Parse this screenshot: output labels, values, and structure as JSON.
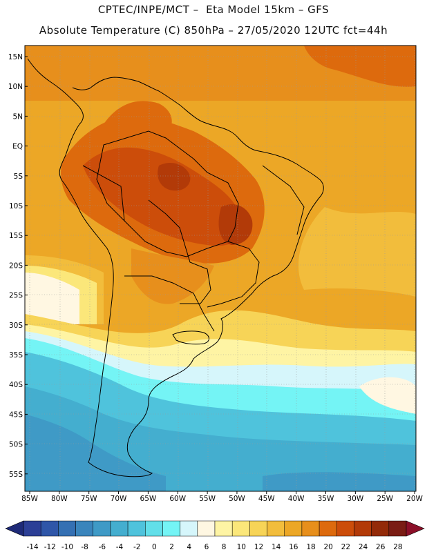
{
  "title": {
    "line1": "CPTEC/INPE/MCT –  Eta Model 15km – GFS",
    "line2": "Absolute Temperature (C) 850hPa – 27/05/2020 12UTC fct=44h"
  },
  "map": {
    "lon_range": [
      -85,
      -20
    ],
    "lat_range": [
      -58,
      17
    ],
    "lat_ticks": [
      "15N",
      "10N",
      "5N",
      "EQ",
      "5S",
      "10S",
      "15S",
      "20S",
      "25S",
      "30S",
      "35S",
      "40S",
      "45S",
      "50S",
      "55S"
    ],
    "lon_ticks": [
      "85W",
      "80W",
      "75W",
      "70W",
      "65W",
      "60W",
      "55W",
      "50W",
      "45W",
      "40W",
      "35W",
      "30W",
      "25W",
      "20W"
    ]
  },
  "colorbar": {
    "labels": [
      "-14",
      "-12",
      "-10",
      "-8",
      "-6",
      "-4",
      "-2",
      "0",
      "2",
      "4",
      "6",
      "8",
      "10",
      "12",
      "14",
      "16",
      "18",
      "20",
      "22",
      "24",
      "26",
      "28"
    ],
    "colors": [
      "#2c3f96",
      "#2f56a8",
      "#3470b3",
      "#3a85bc",
      "#3f9ac6",
      "#44aecf",
      "#4fc3dc",
      "#62dfe9",
      "#74f4f5",
      "#d6f6fb",
      "#fff7e2",
      "#fef4a4",
      "#fbe77a",
      "#f7d457",
      "#f2bd3c",
      "#eca726",
      "#e78f1c",
      "#dd6a0d",
      "#cc4d0a",
      "#b23a08",
      "#932a08",
      "#7a1c14"
    ],
    "arrow_left_color": "#1e2a78",
    "arrow_right_color": "#8b0f28"
  }
}
